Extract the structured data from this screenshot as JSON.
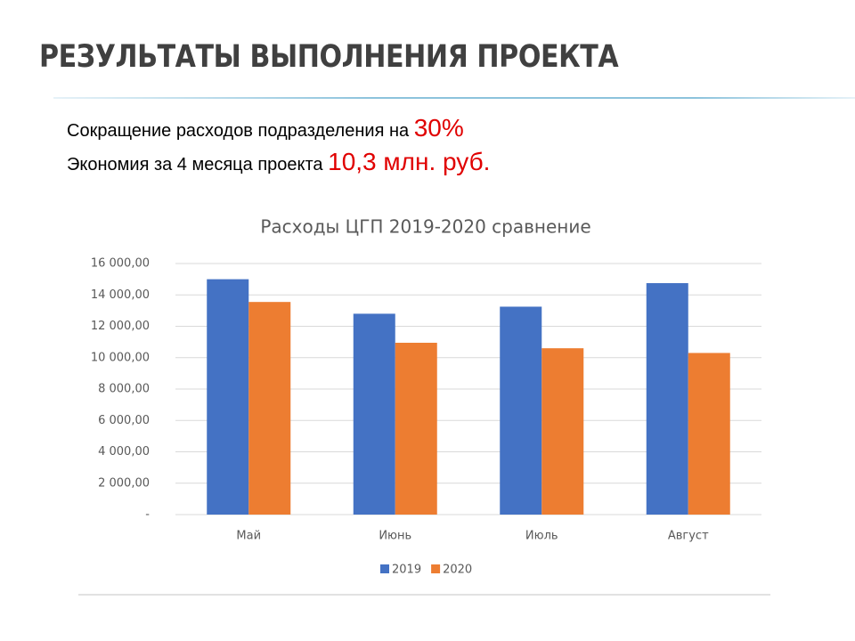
{
  "slide": {
    "title": "РЕЗУЛЬТАТЫ ВЫПОЛНЕНИЯ ПРОЕКТА",
    "lines": [
      {
        "text": "Сокращение расходов подразделения на",
        "highlight": "30%"
      },
      {
        "text": "Экономия за 4 месяца проекта",
        "highlight": "10,3 млн. руб."
      }
    ]
  },
  "chart_data": {
    "type": "bar",
    "title": "Расходы ЦГП 2019-2020 сравнение",
    "categories": [
      "Май",
      "Июнь",
      "Июль",
      "Август"
    ],
    "series": [
      {
        "name": "2019",
        "color": "#4472c4",
        "values": [
          15000,
          12800,
          13250,
          14750
        ]
      },
      {
        "name": "2020",
        "color": "#ed7d31",
        "values": [
          13550,
          10950,
          10600,
          10300
        ]
      }
    ],
    "ylim": [
      0,
      16000
    ],
    "yticks": [
      {
        "value": 0,
        "label": "-"
      },
      {
        "value": 2000,
        "label": "2 000,00"
      },
      {
        "value": 4000,
        "label": "4 000,00"
      },
      {
        "value": 6000,
        "label": "6 000,00"
      },
      {
        "value": 8000,
        "label": "8 000,00"
      },
      {
        "value": 10000,
        "label": "10 000,00"
      },
      {
        "value": 12000,
        "label": "12 000,00"
      },
      {
        "value": 14000,
        "label": "14 000,00"
      },
      {
        "value": 16000,
        "label": "16 000,00"
      }
    ],
    "grid": true,
    "legend": "bottom"
  }
}
